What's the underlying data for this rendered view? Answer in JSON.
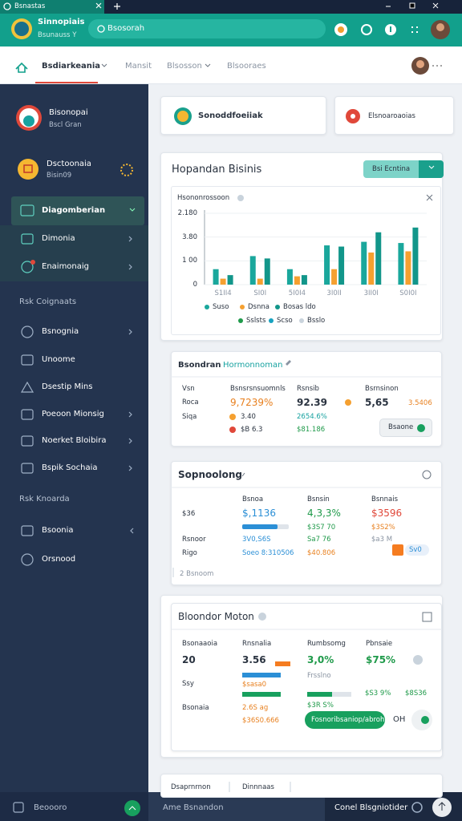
{
  "browser": {
    "tab": "Bsnastas"
  },
  "header": {
    "app_name": "Sinnopiais",
    "app_sub": "Bsunauss Y",
    "search": "Bsosorah"
  },
  "nav": {
    "items": [
      "Bsdiarkeania",
      "Mansit",
      "Blsosson",
      "Blsooraes"
    ],
    "active": 0
  },
  "sidebar": {
    "profile": {
      "name": "Bisonopai",
      "role": "Bscl Gran"
    },
    "account": {
      "name": "Dsctoonaia",
      "id": "Bisin09"
    },
    "menu": [
      "Diagomberian",
      "Dimonia",
      "Enaimonaig"
    ],
    "active": 0,
    "sections": [
      {
        "title": "Rsk Coignaats",
        "items": [
          "Bsnognia",
          "Unoome",
          "Dsestip Mins",
          "Poeoon Mionsig",
          "Noerket Bloibira",
          "Bspik Sochaia"
        ]
      },
      {
        "title": "Rsk Knoarda",
        "items": [
          "Bsoonia",
          "Orsnood"
        ]
      }
    ],
    "footer": "Beoooro"
  },
  "top_cards": [
    "Sonoddfoeiiak",
    "Elsnoaroaoias"
  ],
  "overview": {
    "title": "Hopandan Bisinis",
    "button": "Bsi Ecntina",
    "chart": {
      "title": "Hsononrossoon",
      "categories": [
        "S1II4",
        "SI0I",
        "5I0I4",
        "3I0II",
        "3II0I",
        "S0I0I"
      ],
      "ylim": [
        0,
        300
      ],
      "yticks": [
        0,
        {
          "value": 100,
          "label": "1 00"
        },
        {
          "value": 200,
          "label": "3.80"
        },
        {
          "value": 300,
          "label": "2.180"
        }
      ],
      "series": [
        {
          "name": "Suso",
          "color": "#1aa79c",
          "values": [
            65,
            120,
            65,
            165,
            180,
            175
          ]
        },
        {
          "name": "Dsnna",
          "color": "#f5a030",
          "values": [
            25,
            25,
            35,
            65,
            135,
            140
          ]
        },
        {
          "name": "Bosas ldo",
          "color": "#12968a",
          "values": [
            40,
            110,
            40,
            160,
            220,
            240
          ]
        }
      ],
      "legend_extra": [
        {
          "name": "Sslsts",
          "color": "#1f9a4a"
        },
        {
          "name": "Scso",
          "color": "#17a2c0"
        },
        {
          "name": "Bsslo",
          "color": "#c9d3dc"
        }
      ]
    }
  },
  "summary": {
    "title": "Bsondran",
    "subtitle": "Hormonnoman",
    "columns": [
      "Vsn",
      "Bsnsrsnsuomnls",
      "Rsnsib",
      "Bsrnsinon"
    ],
    "rows": [
      [
        "Roca",
        "9,7239%",
        "92.39",
        "5,65",
        "3.5406"
      ],
      [
        "Siqa",
        "3.40",
        "2654.6%"
      ],
      [
        "$B 6.3",
        "$81.186"
      ]
    ],
    "button": "Bsaone"
  },
  "spending": {
    "title": "Sopnoolong",
    "columns": [
      "Bsnoa",
      "Bsnsin",
      "Bsnnais"
    ],
    "rows": [
      [
        "$36",
        "$,1136",
        "4,3,3%",
        "$3596"
      ],
      [
        "$3S7 70",
        "$3S2%"
      ],
      [
        "Rsnoor",
        "3V0,S6S",
        "Sa7 76",
        "$a3 M"
      ],
      [
        "Rigo",
        "Soeo 8:310506",
        "$40.806",
        "Sv0"
      ]
    ],
    "footer": "2 Bsnoom"
  },
  "motion": {
    "title": "Bloondor Moton",
    "columns": [
      "Bsonaaoia",
      "Rnsnalia",
      "Rumbsomg",
      "Pbnsaie"
    ],
    "rows": [
      [
        "20",
        "3.56",
        "3,0%",
        "$75%"
      ],
      [
        "Ssy",
        "$sasa0",
        "Frsslno",
        "$S3 9%",
        "$8S36"
      ],
      [
        "Bsonaia",
        "2.6S ag",
        "$3R S%",
        "$36S0.666"
      ]
    ],
    "button": "Fosnoribsaniop/abroh",
    "button_side": "OH"
  },
  "bottom_card": [
    "Dsaprnrnon",
    "Dinnnaas"
  ],
  "footer": {
    "left": "Ame Bsnandon",
    "right": "Conel Blsgniotider"
  }
}
